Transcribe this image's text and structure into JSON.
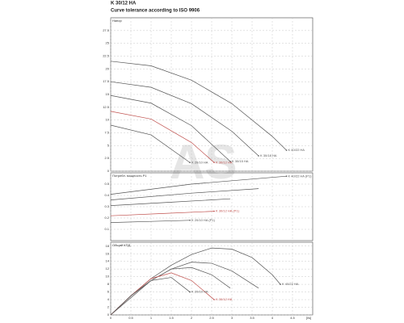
{
  "watermark": "AS",
  "chart_data": [
    {
      "type": "line",
      "title": "K 30/12 HA",
      "subtitle": "Curve tolerance according to ISO 9906",
      "label": "Напор",
      "xlim": [
        0,
        5
      ],
      "xticks": [
        0,
        0.5,
        1,
        1.5,
        2,
        2.5,
        3,
        3.5,
        4,
        4.5
      ],
      "ylim": [
        0,
        30
      ],
      "yticks": [
        0,
        2.5,
        5,
        7.5,
        10,
        12.5,
        15,
        17.5,
        20,
        22.5,
        25,
        27.5
      ],
      "grid": true,
      "series": [
        {
          "name": "K 40/22 HA",
          "color": "#555555",
          "x": [
            0,
            1,
            2,
            3,
            4,
            4.35
          ],
          "values": [
            21.5,
            20.6,
            17.8,
            13.2,
            6.8,
            4.1
          ]
        },
        {
          "name": "K 30/18 HA",
          "color": "#555555",
          "x": [
            0,
            1,
            2,
            3,
            3.66
          ],
          "values": [
            17.5,
            16.4,
            13.2,
            7.8,
            3
          ]
        },
        {
          "name": "K 30/15 HA",
          "color": "#555555",
          "x": [
            0,
            1,
            2,
            2.96
          ],
          "values": [
            14.8,
            13.3,
            8.9,
            1.9
          ]
        },
        {
          "name": "K 30/12 HA",
          "color": "#c0504d",
          "x": [
            0,
            1,
            2,
            2.56
          ],
          "values": [
            11.7,
            10.2,
            5.6,
            1.7
          ]
        },
        {
          "name": "K 20/10 HA",
          "color": "#555555",
          "x": [
            0,
            1,
            1.96
          ],
          "values": [
            9,
            7.1,
            1.7
          ]
        }
      ]
    },
    {
      "type": "line",
      "label": "Потребл. мощность P1",
      "xlim": [
        0,
        5
      ],
      "xticks": [
        0,
        0.5,
        1,
        1.5,
        2,
        2.5,
        3,
        3.5,
        4,
        4.5
      ],
      "ylim": [
        0,
        0.6
      ],
      "yticks": [
        0.1,
        0.2,
        0.3,
        0.4,
        0.5
      ],
      "grid": true,
      "series": [
        {
          "name": "K 40/22 HA (P1)",
          "color": "#555555",
          "x": [
            0,
            2,
            4.35
          ],
          "values": [
            0.41,
            0.5,
            0.57
          ]
        },
        {
          "color": "#555555",
          "x": [
            0,
            2,
            3.66
          ],
          "values": [
            0.36,
            0.42,
            0.46
          ]
        },
        {
          "color": "#555555",
          "x": [
            0,
            1.5,
            2.96
          ],
          "values": [
            0.31,
            0.34,
            0.37
          ]
        },
        {
          "name": "K 30/12 HA (P1)",
          "color": "#c0504d",
          "x": [
            0,
            1.3,
            2.56
          ],
          "values": [
            0.22,
            0.24,
            0.26
          ]
        },
        {
          "name": "K 20/10 HA (P1)",
          "color": "#555555",
          "x": [
            0,
            1,
            1.96
          ],
          "values": [
            0.16,
            0.17,
            0.18
          ]
        }
      ]
    },
    {
      "type": "line",
      "label": "Общий КПД",
      "x_label": "[l/s]",
      "xlim": [
        0,
        5
      ],
      "xticks": [
        0,
        0.5,
        1,
        1.5,
        2,
        2.5,
        3,
        3.5,
        4,
        4.5
      ],
      "ylim": [
        0,
        19
      ],
      "yticks": [
        0,
        2,
        4,
        6,
        8,
        10,
        12,
        14,
        16,
        18
      ],
      "grid": true,
      "series": [
        {
          "name": "K 40/22 HA",
          "color": "#555555",
          "x": [
            0,
            0.5,
            1,
            1.5,
            2,
            2.5,
            3,
            3.5,
            4,
            4.2
          ],
          "values": [
            0,
            5,
            9.5,
            13,
            15.8,
            17.5,
            17.2,
            15,
            10.5,
            8
          ]
        },
        {
          "color": "#555555",
          "x": [
            0,
            0.5,
            1,
            1.5,
            2,
            2.5,
            3,
            3.66
          ],
          "values": [
            0,
            5,
            9,
            12,
            13.8,
            13.5,
            11.5,
            7
          ]
        },
        {
          "color": "#555555",
          "x": [
            0,
            0.5,
            1,
            1.5,
            2,
            2.5,
            2.96
          ],
          "values": [
            0,
            4.5,
            9,
            12,
            12.4,
            10.5,
            7
          ]
        },
        {
          "name": "K 30/12 HA",
          "color": "#c0504d",
          "x": [
            0,
            0.5,
            1,
            1.5,
            2,
            2.56
          ],
          "values": [
            0,
            5,
            9.5,
            11,
            9,
            4
          ]
        },
        {
          "name": "K 20/10 HA",
          "color": "#555555",
          "x": [
            0,
            0.5,
            1,
            1.5,
            1.96
          ],
          "values": [
            0,
            5,
            9,
            9.8,
            6
          ]
        }
      ]
    }
  ]
}
